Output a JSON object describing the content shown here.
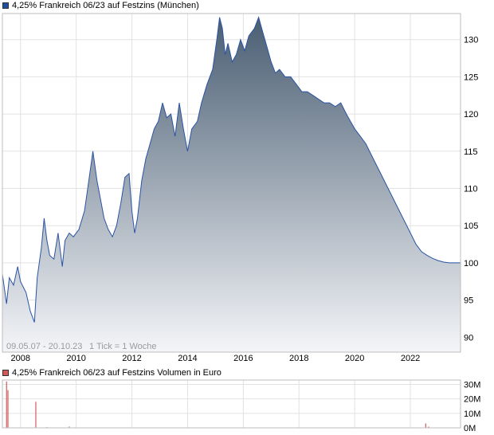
{
  "legend_main": {
    "label": "4,25% Frankreich 06/23 auf Festzins (München)",
    "color": "#1f4e9c"
  },
  "legend_volume": {
    "label": "4,25% Frankreich 06/23 auf Festzins Volumen in Euro",
    "color": "#d25a5a"
  },
  "footer": {
    "range": "09.05.07 - 20.10.23",
    "tick": "1 Tick = 1 Woche"
  },
  "colors": {
    "line": "#2b53a5",
    "fill_top": "#4a5e73",
    "fill_bottom": "#f4f5f8",
    "grid": "#e2e2e2",
    "volume_bar": "#d25a5a",
    "volume_bar_minor": "#66bb66"
  },
  "chart_data": [
    {
      "type": "area",
      "title": "4,25% Frankreich 06/23 auf Festzins (München)",
      "x_ticks": [
        "2008",
        "2010",
        "2012",
        "2014",
        "2016",
        "2018",
        "2020",
        "2022"
      ],
      "y_ticks": [
        "90",
        "95",
        "100",
        "105",
        "110",
        "115",
        "120",
        "125",
        "130"
      ],
      "xlim": [
        2007.35,
        2023.8
      ],
      "ylim": [
        88,
        133.5
      ],
      "grid": true,
      "series": [
        {
          "name": "4,25% Frankreich 06/23 auf Festzins (München)",
          "x": [
            2007.35,
            2007.5,
            2007.6,
            2007.75,
            2007.9,
            2008.0,
            2008.2,
            2008.35,
            2008.5,
            2008.6,
            2008.75,
            2008.85,
            2008.95,
            2009.05,
            2009.2,
            2009.35,
            2009.5,
            2009.6,
            2009.75,
            2009.9,
            2010.1,
            2010.3,
            2010.45,
            2010.6,
            2010.75,
            2010.9,
            2011.0,
            2011.15,
            2011.3,
            2011.45,
            2011.6,
            2011.75,
            2011.9,
            2012.0,
            2012.1,
            2012.2,
            2012.35,
            2012.5,
            2012.65,
            2012.8,
            2012.95,
            2013.1,
            2013.25,
            2013.4,
            2013.55,
            2013.7,
            2013.85,
            2014.0,
            2014.15,
            2014.35,
            2014.5,
            2014.7,
            2014.9,
            2015.05,
            2015.15,
            2015.25,
            2015.35,
            2015.45,
            2015.6,
            2015.75,
            2015.9,
            2016.05,
            2016.2,
            2016.4,
            2016.55,
            2016.7,
            2016.85,
            2017.0,
            2017.15,
            2017.3,
            2017.5,
            2017.7,
            2017.9,
            2018.1,
            2018.3,
            2018.5,
            2018.7,
            2018.9,
            2019.1,
            2019.3,
            2019.5,
            2019.7,
            2019.85,
            2020.0,
            2020.2,
            2020.4,
            2020.6,
            2020.8,
            2021.0,
            2021.2,
            2021.4,
            2021.6,
            2021.8,
            2022.0,
            2022.2,
            2022.4,
            2022.6,
            2022.8,
            2023.0,
            2023.2,
            2023.4,
            2023.6,
            2023.8
          ],
          "values": [
            98.5,
            94.5,
            98,
            97,
            99.5,
            97.5,
            96,
            93.5,
            92,
            98,
            102,
            106,
            103,
            101,
            100.5,
            104,
            99.5,
            103,
            104,
            103.5,
            104.5,
            107,
            111,
            115,
            111,
            108,
            106,
            104.5,
            103.5,
            105,
            108,
            111.5,
            112,
            107,
            104,
            106,
            111,
            114,
            116,
            118,
            119,
            121.5,
            119.5,
            120,
            117,
            121.5,
            118,
            115,
            118,
            119,
            121.5,
            124,
            126,
            130,
            133,
            131.5,
            128,
            129.5,
            127,
            128,
            130,
            128.5,
            130.5,
            131.5,
            133,
            131,
            129,
            127,
            125.5,
            126,
            125,
            125,
            124,
            123,
            123,
            122.5,
            122,
            121.5,
            121.5,
            121,
            121.5,
            120,
            119,
            118,
            117,
            116,
            114.5,
            113,
            111.5,
            110,
            108.5,
            107,
            105.5,
            104,
            102.5,
            101.5,
            101,
            100.6,
            100.3,
            100.1,
            100,
            100,
            100
          ]
        }
      ]
    },
    {
      "type": "bar",
      "title": "4,25% Frankreich 06/23 auf Festzins Volumen in Euro",
      "y_ticks": [
        "0M",
        "10M",
        "20M",
        "30M"
      ],
      "ylim": [
        0,
        33
      ],
      "grid": true,
      "series": [
        {
          "name": "4,25% Frankreich 06/23 auf Festzins Volumen in Euro",
          "x": [
            2007.5,
            2007.55,
            2008.55,
            2008.95,
            2009.75,
            2010.3,
            2014.0,
            2022.55,
            2022.65
          ],
          "values": [
            32,
            26,
            18,
            0.5,
            1,
            0.3,
            0.3,
            3,
            0.8
          ]
        }
      ]
    }
  ]
}
